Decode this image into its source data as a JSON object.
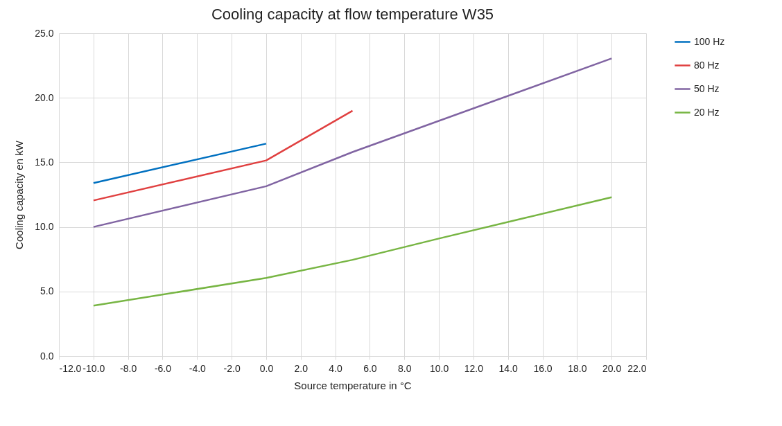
{
  "chart_data": {
    "type": "line",
    "title": "Cooling capacity at flow temperature W35",
    "xlabel": "Source temperature in °C",
    "ylabel": "Cooling capacity en kW",
    "xlim": [
      -12,
      22
    ],
    "xticks": [
      {
        "value": -12,
        "label": "-12.0"
      },
      {
        "value": -10,
        "label": "-10.0"
      },
      {
        "value": -8,
        "label": "-8.0"
      },
      {
        "value": -6,
        "label": "-6.0"
      },
      {
        "value": -4,
        "label": "-4.0"
      },
      {
        "value": -2,
        "label": "-2.0"
      },
      {
        "value": 0,
        "label": "0.0"
      },
      {
        "value": 2,
        "label": "2.0"
      },
      {
        "value": 4,
        "label": "4.0"
      },
      {
        "value": 6,
        "label": "6.0"
      },
      {
        "value": 8,
        "label": "8.0"
      },
      {
        "value": 10,
        "label": "10.0"
      },
      {
        "value": 12,
        "label": "12.0"
      },
      {
        "value": 14,
        "label": "14.0"
      },
      {
        "value": 16,
        "label": "16.0"
      },
      {
        "value": 18,
        "label": "18.0"
      },
      {
        "value": 20,
        "label": "20.0"
      },
      {
        "value": 22,
        "label": "22.0"
      }
    ],
    "ylim": [
      0,
      25
    ],
    "yticks": [
      {
        "value": 0,
        "label": "0.0"
      },
      {
        "value": 5,
        "label": "5.0"
      },
      {
        "value": 10,
        "label": "10.0"
      },
      {
        "value": 15,
        "label": "15.0"
      },
      {
        "value": 20,
        "label": "20.0"
      },
      {
        "value": 25,
        "label": "25.0"
      }
    ],
    "grid": true,
    "legend": "right",
    "marker": "none",
    "line_style": "solid",
    "series": [
      {
        "name": "100 Hz",
        "color": "#0070c0",
        "x": [
          -10,
          0
        ],
        "values": [
          13.4,
          16.45
        ]
      },
      {
        "name": "80 Hz",
        "color": "#e04040",
        "x": [
          -10,
          0,
          5
        ],
        "values": [
          12.05,
          15.15,
          19.0
        ]
      },
      {
        "name": "50 Hz",
        "color": "#8064a2",
        "x": [
          -10,
          0,
          5,
          20
        ],
        "values": [
          10.0,
          13.15,
          15.8,
          23.05
        ]
      },
      {
        "name": "20 Hz",
        "color": "#77b543",
        "x": [
          -10,
          0,
          5,
          10,
          15,
          20
        ],
        "values": [
          3.9,
          6.05,
          7.45,
          9.1,
          10.7,
          12.3
        ]
      }
    ]
  }
}
